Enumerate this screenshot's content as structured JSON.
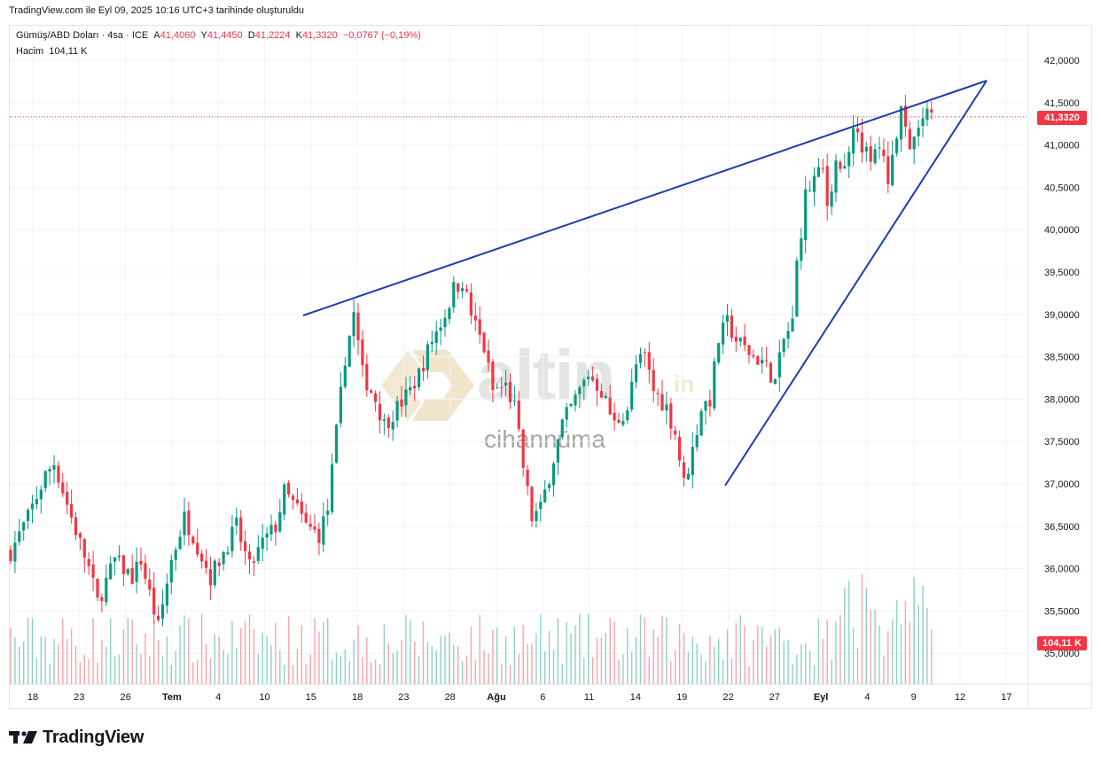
{
  "header": {
    "created_text": "TradingView.com ile Eyl 09, 2025 10:16 UTC+3 tarihinde oluşturuldu"
  },
  "legend": {
    "symbol": "Gümüş/ABD Doları · 4sa · ICE",
    "open_label": "A",
    "open_value": "41,4060",
    "high_label": "Y",
    "high_value": "41,4450",
    "low_label": "D",
    "low_value": "41,2224",
    "close_label": "K",
    "close_value": "41,3320",
    "change": "−0,0767 (−0,19%)",
    "volume_label": "Hacim",
    "volume_value": "104,11 K"
  },
  "price_axis": {
    "ticks": [
      "42,0000",
      "41,5000",
      "41,0000",
      "40,5000",
      "40,0000",
      "39,5000",
      "39,0000",
      "38,5000",
      "38,0000",
      "37,5000",
      "37,0000",
      "36,5000",
      "36,0000",
      "35,5000",
      "35,0000"
    ],
    "tick_values": [
      42.0,
      41.5,
      41.0,
      40.5,
      40.0,
      39.5,
      39.0,
      38.5,
      38.0,
      37.5,
      37.0,
      36.5,
      36.0,
      35.5,
      35.0
    ],
    "current_price": "41,3320",
    "current_price_value": 41.332,
    "volume_tag": "104,11 K"
  },
  "time_axis": {
    "labels": [
      "18",
      "23",
      "26",
      "Tem",
      "4",
      "10",
      "15",
      "18",
      "23",
      "28",
      "Ağu",
      "6",
      "11",
      "14",
      "19",
      "22",
      "27",
      "Eyl",
      "4",
      "9",
      "12",
      "17"
    ],
    "bold_labels": [
      "Tem",
      "Ağu",
      "Eyl"
    ]
  },
  "watermark": {
    "brand": "altin",
    "suffix": "in",
    "sub": "cihannüma"
  },
  "footer": {
    "brand": "TradingView"
  },
  "colors": {
    "up": "#089981",
    "down": "#f23645",
    "trendline": "#1e3fa8",
    "grid": "#f0f3fa",
    "price_line": "#f23645"
  },
  "chart_data": {
    "type": "candlestick",
    "title": "Gümüş/ABD Doları · 4sa · ICE",
    "ylim": [
      34.7,
      42.4
    ],
    "close_path": [
      [
        0,
        36.2
      ],
      [
        4,
        36.6
      ],
      [
        8,
        37.1
      ],
      [
        10,
        37.25
      ],
      [
        14,
        36.6
      ],
      [
        18,
        36.0
      ],
      [
        20,
        35.6
      ],
      [
        24,
        36.1
      ],
      [
        28,
        35.9
      ],
      [
        30,
        36.1
      ],
      [
        34,
        35.3
      ],
      [
        37,
        36.1
      ],
      [
        40,
        36.6
      ],
      [
        42,
        36.4
      ],
      [
        46,
        35.9
      ],
      [
        49,
        36.2
      ],
      [
        52,
        36.5
      ],
      [
        55,
        36.0
      ],
      [
        58,
        36.3
      ],
      [
        61,
        36.5
      ],
      [
        63,
        36.9
      ],
      [
        66,
        36.7
      ],
      [
        68,
        36.5
      ],
      [
        71,
        36.4
      ],
      [
        73,
        36.7
      ],
      [
        75,
        37.6
      ],
      [
        77,
        38.5
      ],
      [
        79,
        39.0
      ],
      [
        81,
        38.3
      ],
      [
        84,
        38.0
      ],
      [
        86,
        37.7
      ],
      [
        89,
        37.9
      ],
      [
        92,
        38.1
      ],
      [
        94,
        38.3
      ],
      [
        97,
        38.7
      ],
      [
        100,
        39.0
      ],
      [
        102,
        39.3
      ],
      [
        104,
        39.4
      ],
      [
        106,
        39.0
      ],
      [
        109,
        38.6
      ],
      [
        111,
        38.1
      ],
      [
        114,
        38.15
      ],
      [
        116,
        37.9
      ],
      [
        118,
        37.2
      ],
      [
        120,
        36.6
      ],
      [
        122,
        36.7
      ],
      [
        124,
        37.1
      ],
      [
        127,
        37.7
      ],
      [
        130,
        38.0
      ],
      [
        133,
        38.3
      ],
      [
        136,
        38.1
      ],
      [
        139,
        37.7
      ],
      [
        142,
        37.9
      ],
      [
        144,
        38.4
      ],
      [
        146,
        38.5
      ],
      [
        148,
        38.1
      ],
      [
        151,
        37.9
      ],
      [
        153,
        37.6
      ],
      [
        155,
        37.0
      ],
      [
        157,
        37.4
      ],
      [
        159,
        37.9
      ],
      [
        161,
        38.0
      ],
      [
        163,
        38.7
      ],
      [
        165,
        38.9
      ],
      [
        167,
        38.7
      ],
      [
        169,
        38.6
      ],
      [
        171,
        38.5
      ],
      [
        173,
        38.45
      ],
      [
        175,
        38.3
      ],
      [
        176,
        38.2
      ],
      [
        178,
        38.7
      ],
      [
        180,
        38.9
      ],
      [
        181,
        39.6
      ],
      [
        183,
        40.4
      ],
      [
        185,
        40.6
      ],
      [
        187,
        40.7
      ],
      [
        188,
        40.3
      ],
      [
        190,
        40.8
      ],
      [
        192,
        40.7
      ],
      [
        194,
        41.3
      ],
      [
        196,
        41.0
      ],
      [
        198,
        40.8
      ],
      [
        200,
        41.0
      ],
      [
        202,
        40.6
      ],
      [
        203,
        40.9
      ],
      [
        205,
        41.35
      ],
      [
        207,
        40.9
      ],
      [
        209,
        41.2
      ],
      [
        211,
        41.35
      ],
      [
        212,
        41.33
      ]
    ]
  }
}
